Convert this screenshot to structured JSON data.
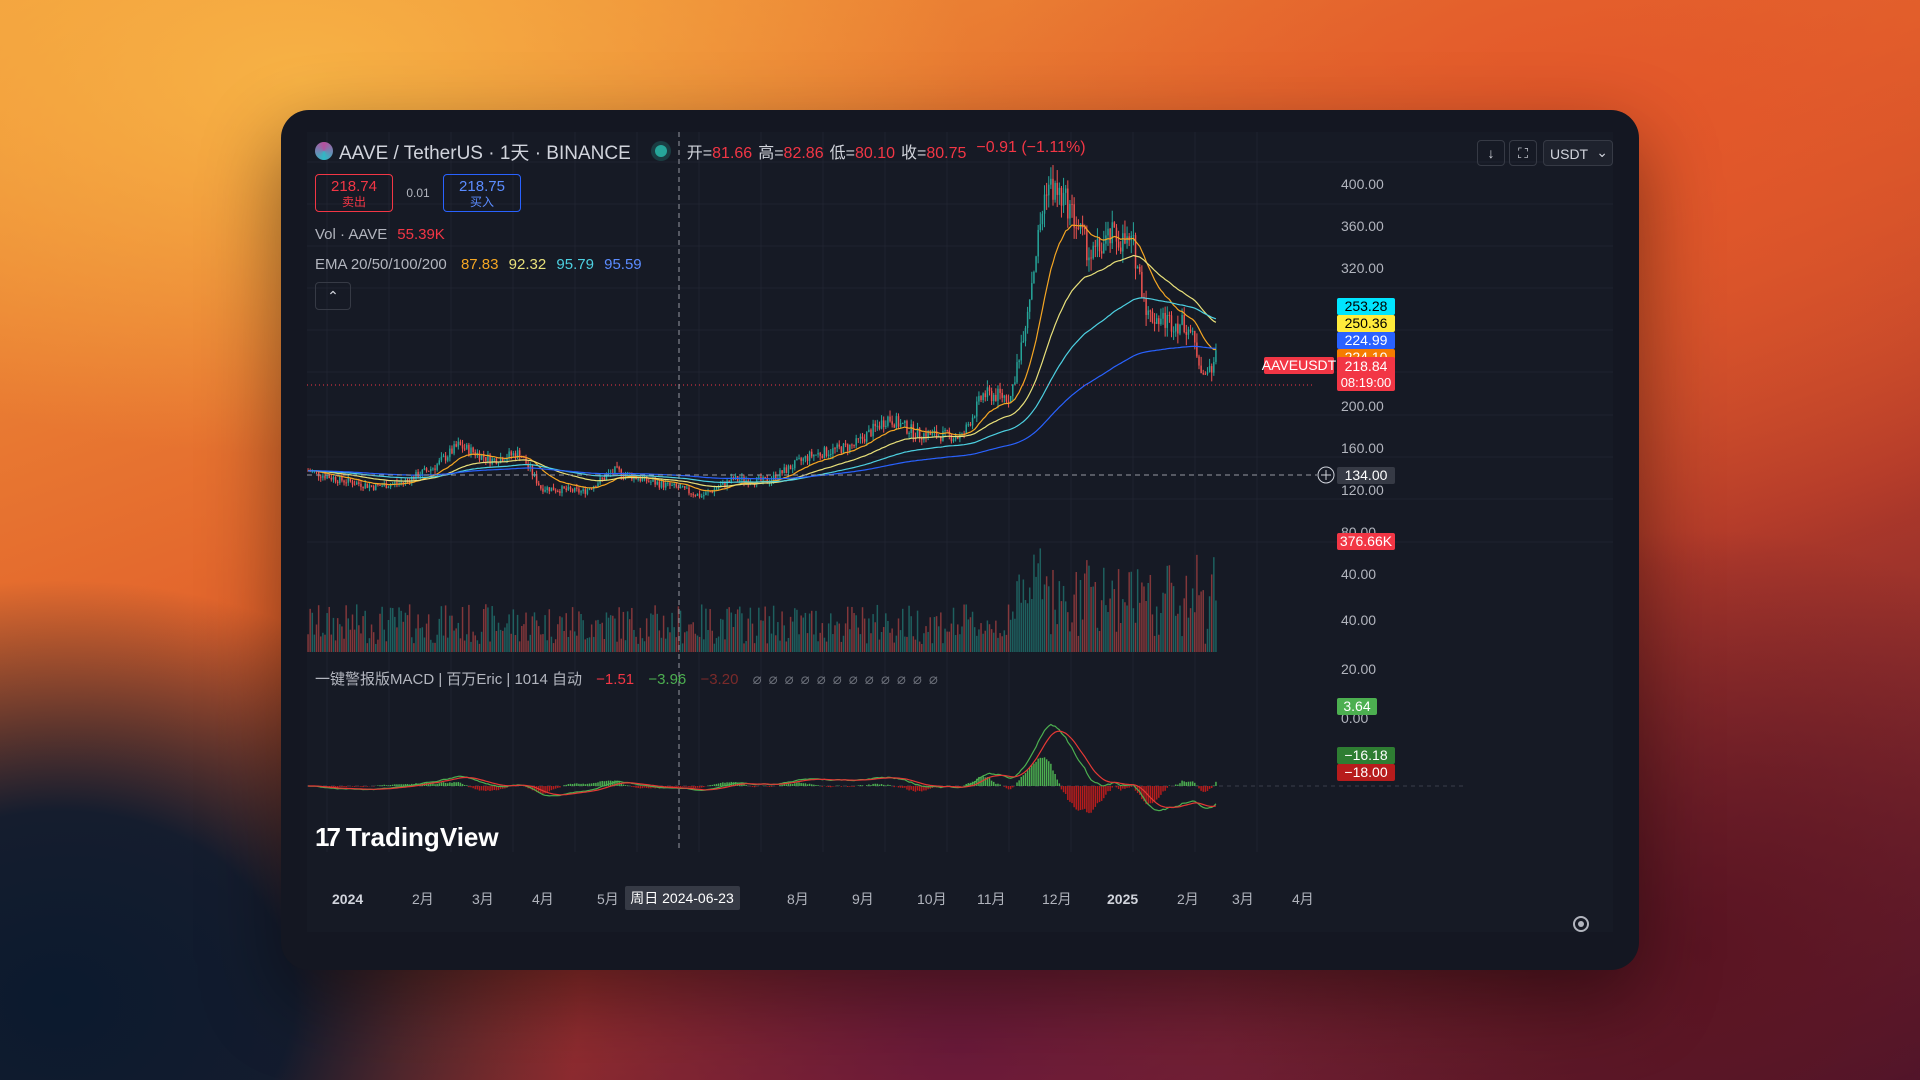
{
  "header": {
    "symbol_title": "AAVE / TetherUS · 1天 · BINANCE",
    "ohlc": [
      {
        "label": "开=",
        "value": "81.66"
      },
      {
        "label": "高=",
        "value": "82.86"
      },
      {
        "label": "低=",
        "value": "80.10"
      },
      {
        "label": "收=",
        "value": "80.75"
      }
    ],
    "change": "−0.91 (−1.11%)"
  },
  "trade": {
    "sell_price": "218.74",
    "sell_label": "卖出",
    "spread": "0.01",
    "buy_price": "218.75",
    "buy_label": "买入"
  },
  "legends": {
    "vol_label": "Vol · AAVE",
    "vol_value": "55.39K",
    "ema_label": "EMA 20/50/100/200",
    "ema_values": [
      "87.83",
      "92.32",
      "95.79",
      "95.59"
    ]
  },
  "toolbar": {
    "collapse_glyph": "⌃",
    "download_glyph": "↓",
    "fullscreen_glyph": "⛶",
    "currency": "USDT",
    "currency_chevron": "⌄"
  },
  "macd": {
    "label": "一键警报版MACD | 百万Eric | 1014 自动",
    "v1": "−1.51",
    "v2": "−3.96",
    "v3": "−3.20",
    "dashes": "⌀⌀⌀⌀⌀⌀⌀⌀⌀⌀⌀⌀"
  },
  "branding": {
    "logo_mark": "17",
    "logo_text": "TradingView"
  },
  "price_axis": {
    "ticks": [
      "400.00",
      "360.00",
      "320.00",
      "200.00",
      "160.00",
      "120.00",
      "80.00",
      "40.00"
    ],
    "tags": {
      "ema_a": "253.28",
      "ema_b": "250.36",
      "ema_c": "224.99",
      "ema_d": "224.10",
      "symbol_tag": "AAVEUSDT",
      "last_price": "218.84",
      "countdown": "08:19:00",
      "crosshair_price": "134.00",
      "volume": "376.66K"
    }
  },
  "macd_axis": {
    "ticks": [
      "40.00",
      "20.00",
      "0.00"
    ],
    "tags": {
      "hist": "3.64",
      "macd": "−16.18",
      "signal": "−18.00"
    }
  },
  "time_axis": {
    "labels": [
      "2024",
      "2月",
      "3月",
      "4月",
      "5月",
      "8月",
      "9月",
      "10月",
      "11月",
      "12月",
      "2025",
      "2月",
      "3月",
      "4月"
    ],
    "crosshair_date": "周日 2024-06-23"
  },
  "colors": {
    "up": "#26a69a",
    "down": "#ef5350",
    "ema20": "#f5a623",
    "ema50": "#e8e07a",
    "ema100": "#4dd0e1",
    "ema200": "#2962ff"
  },
  "chart_data": {
    "type": "candlestick",
    "title": "AAVE / TetherUS · 1天 · BINANCE",
    "x_range": [
      "2024-01-01",
      "2025-03-10"
    ],
    "y_range": [
      40,
      400
    ],
    "series_points": [
      {
        "date": "2024-01-01",
        "close": 108
      },
      {
        "date": "2024-01-15",
        "close": 100
      },
      {
        "date": "2024-02-01",
        "close": 93
      },
      {
        "date": "2024-02-15",
        "close": 97
      },
      {
        "date": "2024-03-01",
        "close": 112
      },
      {
        "date": "2024-03-12",
        "close": 132
      },
      {
        "date": "2024-03-28",
        "close": 118
      },
      {
        "date": "2024-04-10",
        "close": 125
      },
      {
        "date": "2024-04-20",
        "close": 92
      },
      {
        "date": "2024-05-10",
        "close": 88
      },
      {
        "date": "2024-05-25",
        "close": 108
      },
      {
        "date": "2024-06-10",
        "close": 98
      },
      {
        "date": "2024-06-23",
        "close": 92
      },
      {
        "date": "2024-07-05",
        "close": 84
      },
      {
        "date": "2024-07-20",
        "close": 100
      },
      {
        "date": "2024-08-05",
        "close": 98
      },
      {
        "date": "2024-08-25",
        "close": 122
      },
      {
        "date": "2024-09-15",
        "close": 132
      },
      {
        "date": "2024-10-01",
        "close": 158
      },
      {
        "date": "2024-10-15",
        "close": 143
      },
      {
        "date": "2024-11-05",
        "close": 140
      },
      {
        "date": "2024-11-15",
        "close": 180
      },
      {
        "date": "2024-11-28",
        "close": 178
      },
      {
        "date": "2024-12-05",
        "close": 250
      },
      {
        "date": "2024-12-15",
        "close": 380
      },
      {
        "date": "2024-12-25",
        "close": 360
      },
      {
        "date": "2025-01-05",
        "close": 310
      },
      {
        "date": "2025-01-15",
        "close": 330
      },
      {
        "date": "2025-01-25",
        "close": 320
      },
      {
        "date": "2025-02-01",
        "close": 255
      },
      {
        "date": "2025-02-10",
        "close": 250
      },
      {
        "date": "2025-02-20",
        "close": 245
      },
      {
        "date": "2025-02-28",
        "close": 195
      },
      {
        "date": "2025-03-05",
        "close": 218
      }
    ]
  }
}
